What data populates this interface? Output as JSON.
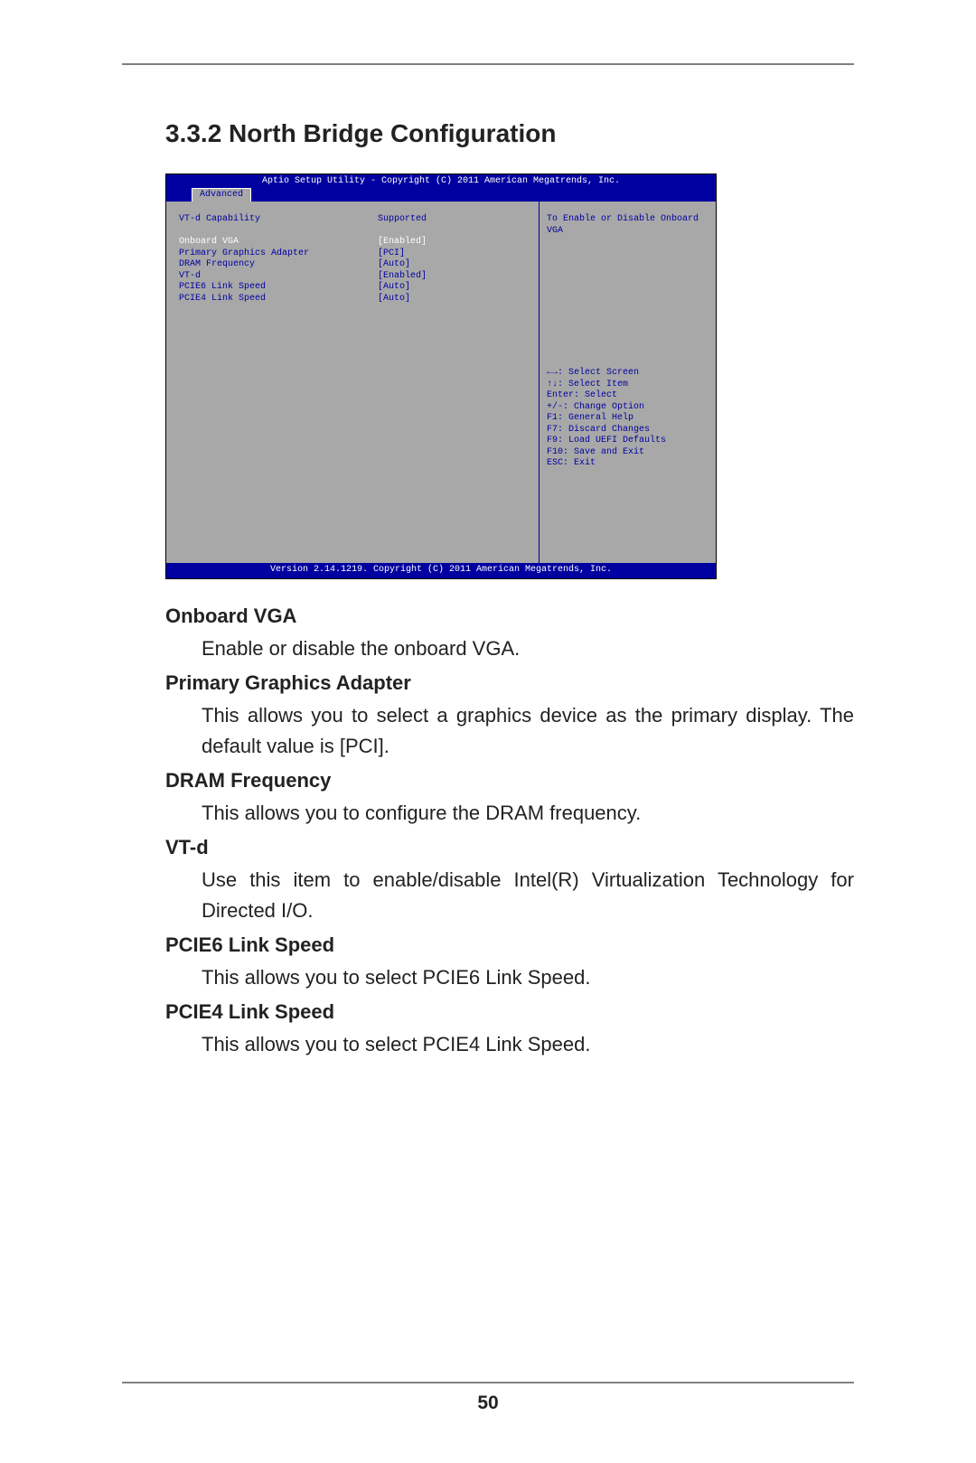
{
  "heading": "3.3.2  North Bridge Configuration",
  "bios": {
    "title_bar": "Aptio Setup Utility - Copyright (C) 2011 American Megatrends, Inc.",
    "tab": "Advanced",
    "rows": [
      {
        "label": "VT-d Capability",
        "value": "Supported",
        "highlight": false
      },
      {
        "label": "",
        "value": "",
        "highlight": false
      },
      {
        "label": "Onboard VGA",
        "value": "[Enabled]",
        "highlight": true
      },
      {
        "label": "Primary Graphics Adapter",
        "value": "[PCI]",
        "highlight": false
      },
      {
        "label": "DRAM Frequency",
        "value": "[Auto]",
        "highlight": false
      },
      {
        "label": "VT-d",
        "value": "[Enabled]",
        "highlight": false
      },
      {
        "label": "PCIE6 Link Speed",
        "value": "[Auto]",
        "highlight": false
      },
      {
        "label": "PCIE4 Link Speed",
        "value": "[Auto]",
        "highlight": false
      }
    ],
    "help_text": "To Enable or Disable Onboard VGA",
    "key_help": [
      "←→: Select Screen",
      "↑↓: Select Item",
      "Enter: Select",
      "+/-: Change Option",
      "F1: General Help",
      "F7: Discard Changes",
      "F9: Load UEFI Defaults",
      "F10: Save and Exit",
      "ESC: Exit"
    ],
    "footer": "Version 2.14.1219. Copyright (C) 2011 American Megatrends, Inc."
  },
  "descriptions": [
    {
      "term": "Onboard VGA",
      "body": "Enable or disable the onboard VGA."
    },
    {
      "term": "Primary Graphics Adapter",
      "body": "This allows you to select a graphics device as the primary display. The default value is [PCI]."
    },
    {
      "term": "DRAM Frequency",
      "body": "This allows you to configure the DRAM frequency."
    },
    {
      "term": "VT-d",
      "body": "Use this item to enable/disable Intel(R) Virtualization Technology for Directed I/O."
    },
    {
      "term": "PCIE6 Link Speed",
      "body": "This allows you to select PCIE6 Link Speed."
    },
    {
      "term": "PCIE4 Link Speed",
      "body": "This allows you to select PCIE4 Link Speed."
    }
  ],
  "page_number": "50"
}
